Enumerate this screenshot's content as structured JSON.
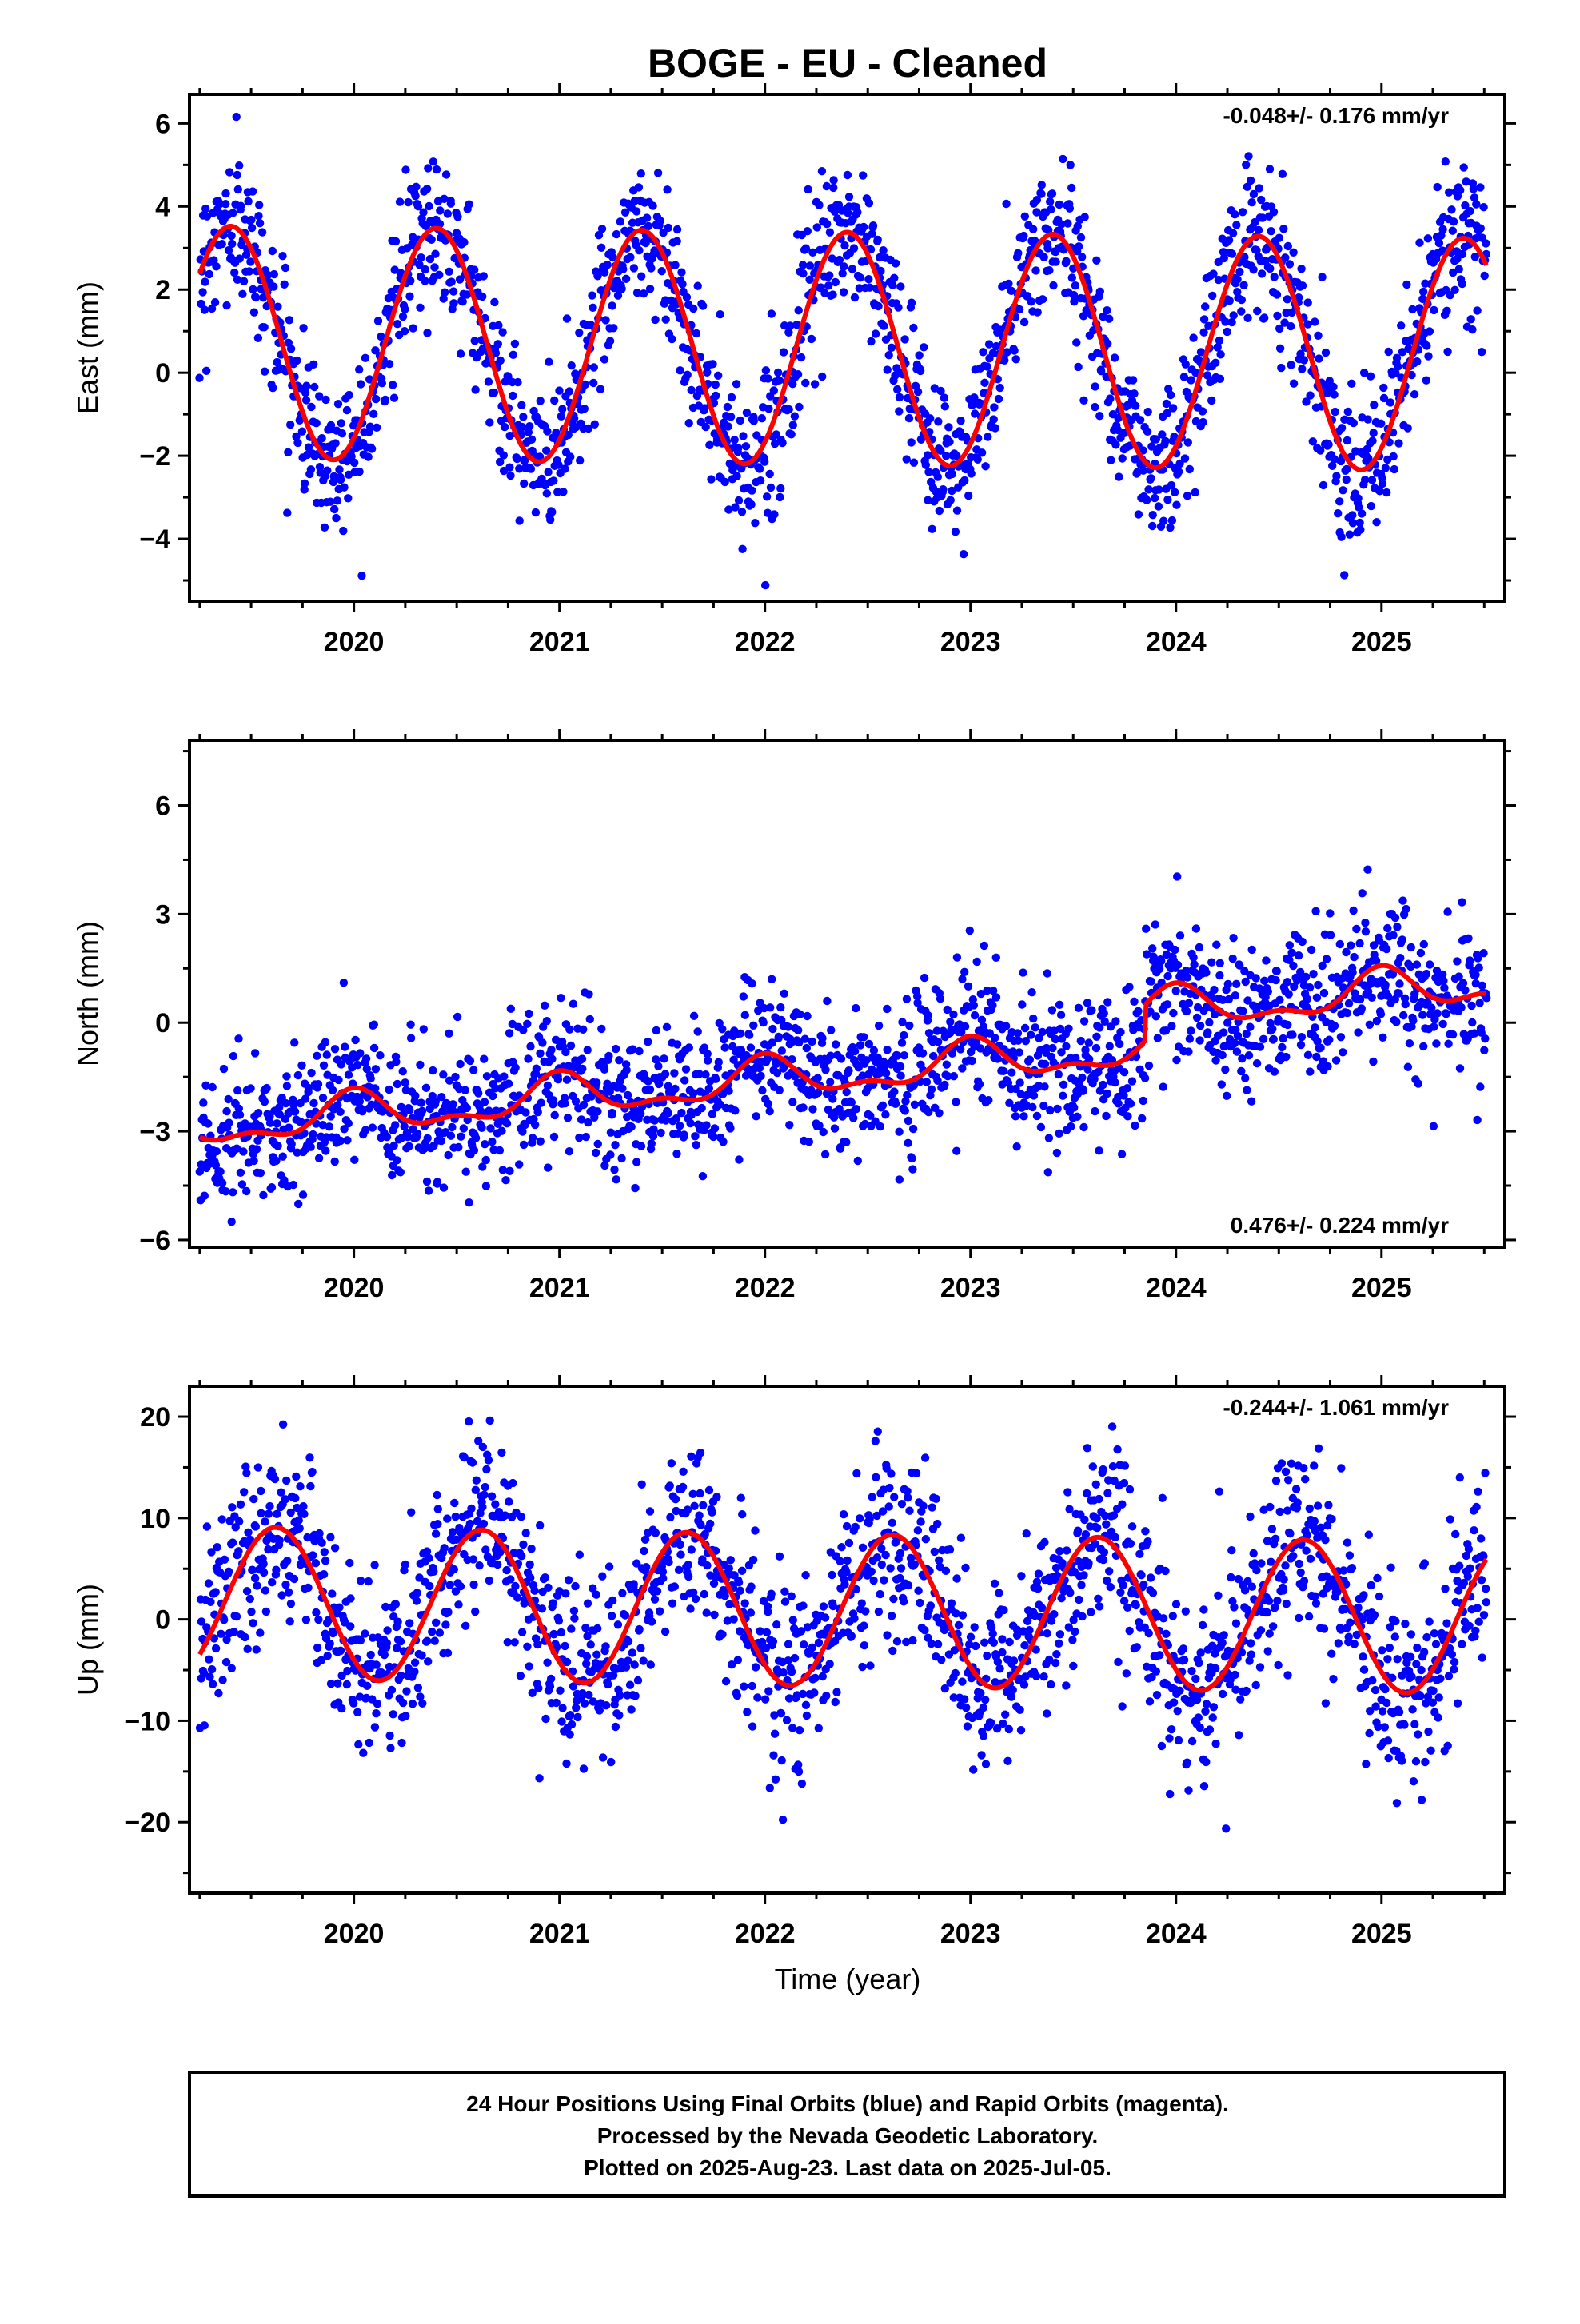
{
  "title": "BOGE  - EU - Cleaned",
  "xlabel": "Time (year)",
  "footer": {
    "line1": "24 Hour Positions Using Final Orbits (blue) and Rapid Orbits (magenta).",
    "line2": "Processed by the Nevada Geodetic Laboratory.",
    "line3": "Plotted on 2025-Aug-23. Last data on 2025-Jul-05."
  },
  "colors": {
    "points": "#0000ff",
    "model": "#ff0000",
    "frame": "#000000"
  },
  "chart_data": [
    {
      "type": "scatter",
      "ylabel": "East (mm)",
      "rate_label": "-0.048+/- 0.176 mm/yr",
      "rate_position": "top-right",
      "xlim": [
        2019.2,
        2025.6
      ],
      "ylim": [
        -5.5,
        6.7
      ],
      "xticks": [
        2020,
        2021,
        2022,
        2023,
        2024,
        2025
      ],
      "yticks": [
        -4,
        -2,
        0,
        2,
        4,
        6
      ],
      "grid": false,
      "series": [
        {
          "kind": "points",
          "x_start": 2019.25,
          "x_end": 2025.51,
          "n_points": 1900,
          "scatter_sd": 0.9
        },
        {
          "kind": "model",
          "offset": 0.6,
          "trend_per_yr": -0.048,
          "annual_amp": 2.8,
          "annual_peak": 2019.4
        }
      ]
    },
    {
      "type": "scatter",
      "ylabel": "North (mm)",
      "rate_label": "0.476+/- 0.224 mm/yr",
      "rate_position": "bottom-right",
      "xlim": [
        2019.2,
        2025.6
      ],
      "ylim": [
        -6.2,
        7.8
      ],
      "xticks": [
        2020,
        2021,
        2022,
        2023,
        2024,
        2025
      ],
      "yticks": [
        -6,
        -3,
        0,
        3,
        6
      ],
      "grid": false,
      "series": [
        {
          "kind": "points",
          "x_start": 2019.25,
          "x_end": 2025.51,
          "n_points": 1900,
          "scatter_sd": 1.0
        },
        {
          "kind": "model",
          "offset": -1.6,
          "trend_per_yr": 0.476,
          "annual_amp": 0.5,
          "annual_peak": 2020.0,
          "semiannual_amp": 0.25,
          "semiannual_peak": 2020.0,
          "steps": [
            {
              "year": 2023.85,
              "size": 1.0
            }
          ]
        }
      ]
    },
    {
      "type": "scatter",
      "ylabel": "Up (mm)",
      "rate_label": "-0.244+/- 1.061 mm/yr",
      "rate_position": "top-right",
      "xlim": [
        2019.2,
        2025.6
      ],
      "ylim": [
        -27,
        23
      ],
      "xticks": [
        2020,
        2021,
        2022,
        2023,
        2024,
        2025
      ],
      "yticks": [
        -20,
        -10,
        0,
        10,
        20
      ],
      "grid": false,
      "series": [
        {
          "kind": "points",
          "x_start": 2019.25,
          "x_end": 2025.51,
          "n_points": 1900,
          "scatter_sd": 4.5
        },
        {
          "kind": "model",
          "offset": 1.0,
          "trend_per_yr": -0.244,
          "annual_amp": 7.5,
          "annual_peak": 2019.62
        }
      ]
    }
  ]
}
